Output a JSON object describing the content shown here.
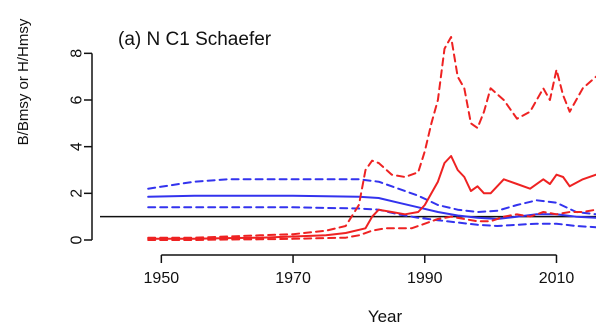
{
  "chart_data": {
    "type": "line",
    "title": "(a) N C1 Schaefer",
    "xlabel": "Year",
    "ylabel": "B/Bmsy or H/Hmsy",
    "xlim": [
      1946,
      2016
    ],
    "ylim": [
      0,
      9
    ],
    "xticks": [
      1950,
      1970,
      1990,
      2010
    ],
    "xtick_labels": [
      "1950",
      "1970",
      "1990",
      "2010"
    ],
    "yticks": [
      0,
      2,
      4,
      6,
      8
    ],
    "ytick_labels": [
      "0",
      "2",
      "4",
      "6",
      "8"
    ],
    "reference_line_y": 1,
    "colors": {
      "blue": "#3333ee",
      "red": "#ee2222",
      "axis": "#111111"
    },
    "series": [
      {
        "style": "solid",
        "color": "blue",
        "x": [
          1948,
          1955,
          1960,
          1970,
          1980,
          1983,
          1986,
          1989,
          1992,
          1995,
          1998,
          2001,
          2004,
          2007,
          2010,
          2013,
          2016
        ],
        "y": [
          1.85,
          1.9,
          1.9,
          1.9,
          1.85,
          1.8,
          1.6,
          1.4,
          1.2,
          1.05,
          0.95,
          0.9,
          1.0,
          1.1,
          1.1,
          1.0,
          0.95
        ]
      },
      {
        "style": "dashed",
        "color": "blue",
        "x": [
          1948,
          1955,
          1960,
          1970,
          1980,
          1983,
          1986,
          1989,
          1992,
          1995,
          1998,
          2001,
          2004,
          2007,
          2010,
          2013,
          2016
        ],
        "y": [
          2.2,
          2.5,
          2.6,
          2.6,
          2.6,
          2.5,
          2.2,
          1.9,
          1.5,
          1.3,
          1.2,
          1.25,
          1.5,
          1.7,
          1.6,
          1.2,
          1.1
        ]
      },
      {
        "style": "dashed",
        "color": "blue",
        "x": [
          1948,
          1955,
          1960,
          1970,
          1980,
          1983,
          1986,
          1989,
          1992,
          1995,
          1998,
          2001,
          2004,
          2007,
          2010,
          2013,
          2016
        ],
        "y": [
          1.4,
          1.4,
          1.4,
          1.4,
          1.35,
          1.3,
          1.1,
          0.95,
          0.85,
          0.75,
          0.65,
          0.6,
          0.65,
          0.7,
          0.7,
          0.6,
          0.55
        ]
      },
      {
        "style": "solid",
        "color": "red",
        "x": [
          1948,
          1955,
          1960,
          1965,
          1970,
          1975,
          1978,
          1981,
          1982,
          1983,
          1985,
          1987,
          1989,
          1990,
          1991,
          1992,
          1993,
          1994,
          1995,
          1996,
          1997,
          1998,
          1999,
          2000,
          2002,
          2004,
          2006,
          2008,
          2009,
          2010,
          2011,
          2012,
          2014,
          2016
        ],
        "y": [
          0.05,
          0.05,
          0.08,
          0.1,
          0.15,
          0.2,
          0.3,
          0.5,
          1.0,
          1.3,
          1.2,
          1.1,
          1.2,
          1.5,
          2.0,
          2.5,
          3.3,
          3.6,
          3.0,
          2.7,
          2.1,
          2.3,
          2.0,
          2.0,
          2.6,
          2.4,
          2.2,
          2.6,
          2.4,
          2.8,
          2.7,
          2.3,
          2.6,
          2.8
        ]
      },
      {
        "style": "dashed",
        "color": "red",
        "x": [
          1948,
          1955,
          1960,
          1965,
          1970,
          1975,
          1978,
          1980,
          1981,
          1982,
          1983,
          1985,
          1987,
          1989,
          1990,
          1991,
          1992,
          1993,
          1994,
          1995,
          1996,
          1997,
          1998,
          1999,
          2000,
          2002,
          2004,
          2006,
          2008,
          2009,
          2010,
          2011,
          2012,
          2014,
          2016
        ],
        "y": [
          0.1,
          0.1,
          0.15,
          0.2,
          0.25,
          0.4,
          0.6,
          1.5,
          3.0,
          3.4,
          3.3,
          2.8,
          2.7,
          2.9,
          3.8,
          5.0,
          6.0,
          8.2,
          8.7,
          7.0,
          6.5,
          5.0,
          4.8,
          5.5,
          6.5,
          6.0,
          5.2,
          5.5,
          6.5,
          6.0,
          7.3,
          6.2,
          5.5,
          6.5,
          7.0
        ]
      },
      {
        "style": "dashed",
        "color": "red",
        "x": [
          1948,
          1955,
          1960,
          1965,
          1970,
          1975,
          1978,
          1980,
          1982,
          1984,
          1986,
          1988,
          1990,
          1992,
          1994,
          1996,
          1998,
          2000,
          2002,
          2004,
          2006,
          2008,
          2010,
          2012,
          2014,
          2016
        ],
        "y": [
          0.0,
          0.0,
          0.02,
          0.03,
          0.05,
          0.08,
          0.1,
          0.2,
          0.4,
          0.5,
          0.5,
          0.5,
          0.7,
          0.9,
          1.0,
          0.9,
          0.8,
          0.8,
          1.0,
          1.1,
          1.0,
          1.2,
          1.1,
          1.2,
          1.2,
          1.3
        ]
      }
    ]
  }
}
